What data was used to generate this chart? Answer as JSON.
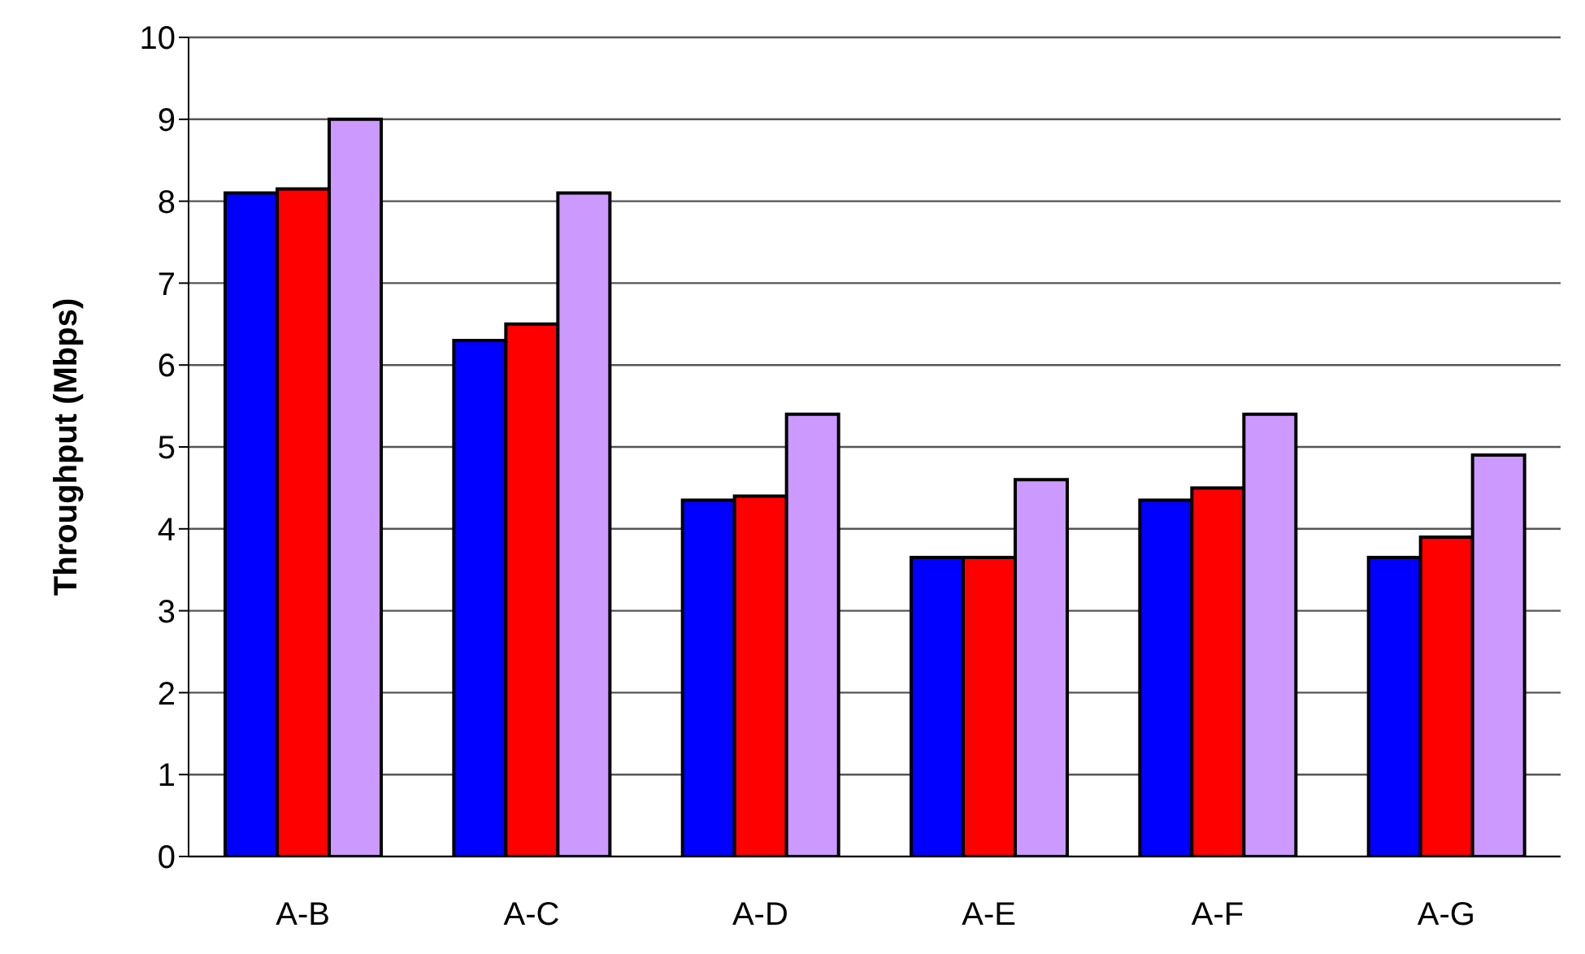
{
  "chart_data": {
    "type": "bar",
    "ylabel": "Throughput (Mbps)",
    "categories": [
      "A-B",
      "A-C",
      "A-D",
      "A-E",
      "A-F",
      "A-G"
    ],
    "series": [
      {
        "color": "#0000ff",
        "values": [
          8.1,
          6.3,
          4.35,
          3.65,
          4.35,
          3.65
        ]
      },
      {
        "color": "#ff0000",
        "values": [
          8.15,
          6.5,
          4.4,
          3.65,
          4.5,
          3.9
        ]
      },
      {
        "color": "#cc99ff",
        "values": [
          9,
          8.1,
          5.4,
          4.6,
          5.4,
          4.9
        ]
      }
    ],
    "ylim": [
      0,
      10
    ],
    "yticks": [
      0,
      1,
      2,
      3,
      4,
      5,
      6,
      7,
      8,
      9,
      10
    ],
    "grid": "y",
    "legend": false
  }
}
